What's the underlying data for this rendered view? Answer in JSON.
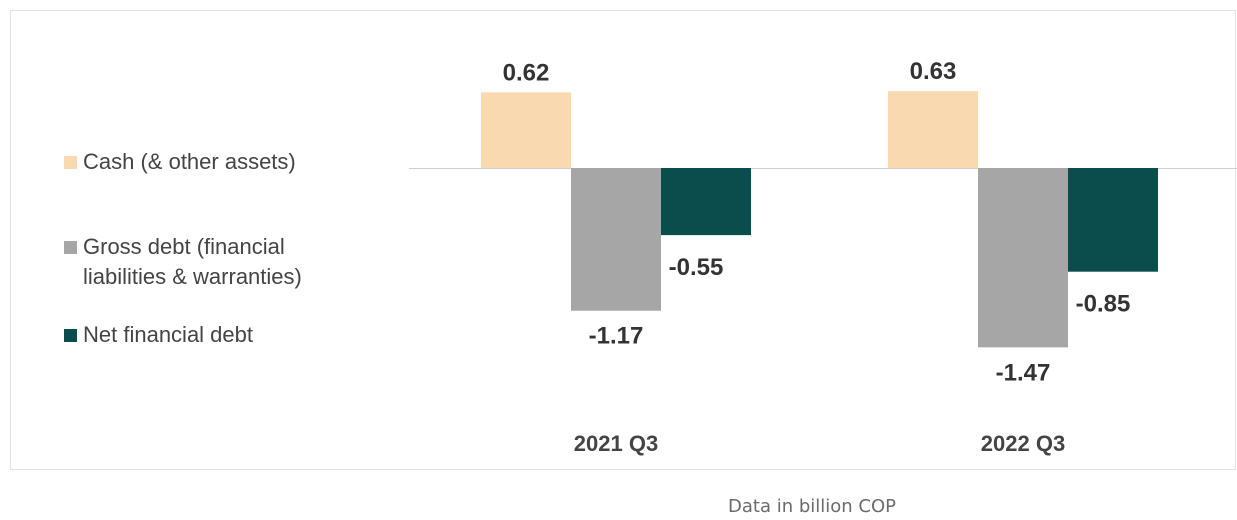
{
  "chart_data": {
    "type": "bar",
    "categories": [
      "2021 Q3",
      "2022 Q3"
    ],
    "series": [
      {
        "name": "Cash (& other assets)",
        "values": [
          0.62,
          0.63
        ],
        "color": "#f9d9b0"
      },
      {
        "name": "Gross debt (financial\nliabilities & warranties)",
        "values": [
          -1.17,
          -1.47
        ],
        "color": "#a6a6a6"
      },
      {
        "name": "Net financial debt",
        "values": [
          -0.55,
          -0.85
        ],
        "color": "#0b4d4d"
      }
    ],
    "data_labels": [
      [
        "0.62",
        "0.63"
      ],
      [
        "-1.17",
        "-1.47"
      ],
      [
        "-0.55",
        "-0.85"
      ]
    ],
    "legend_position": "left",
    "grid": false,
    "axis_line": "zero"
  },
  "footnote": "Data in billion COP",
  "colors": {
    "label_text": "#333333",
    "category_text": "#444444",
    "zero_line": "#cfcfcf"
  }
}
